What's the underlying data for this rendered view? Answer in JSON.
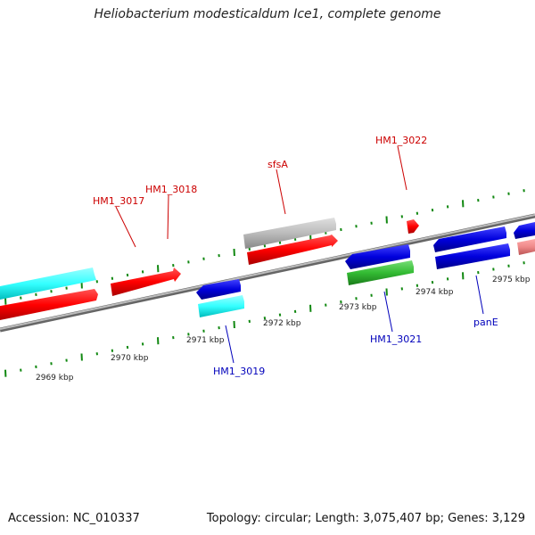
{
  "title": "Heliobacterium modesticaldum Ice1, complete genome",
  "footer": {
    "accession": "Accession: NC_010337",
    "topology": "Topology: circular; Length: 3,075,407 bp; Genes: 3,129"
  },
  "colors": {
    "forward_cds": "#ff0000",
    "reverse_cds": "#0000dd",
    "pseudo_or_other": "#bbbbbb",
    "rna": "#33bb33",
    "cyan_track": "#33ffff",
    "light_red": "#ee8888",
    "backbone": "#888888",
    "ticks": "#118811",
    "label_forward": "#cc0000",
    "label_reverse": "#0000bb"
  },
  "scale_labels": [
    "2969 kbp",
    "2970 kbp",
    "2971 kbp",
    "2972 kbp",
    "2973 kbp",
    "2974 kbp",
    "2975 kbp"
  ],
  "gene_labels": {
    "hm1_3017": "HM1_3017",
    "hm1_3018": "HM1_3018",
    "sfsa": "sfsA",
    "hm1_3022": "HM1_3022",
    "hm1_3019": "HM1_3019",
    "hm1_3021": "HM1_3021",
    "pane": "panE"
  }
}
